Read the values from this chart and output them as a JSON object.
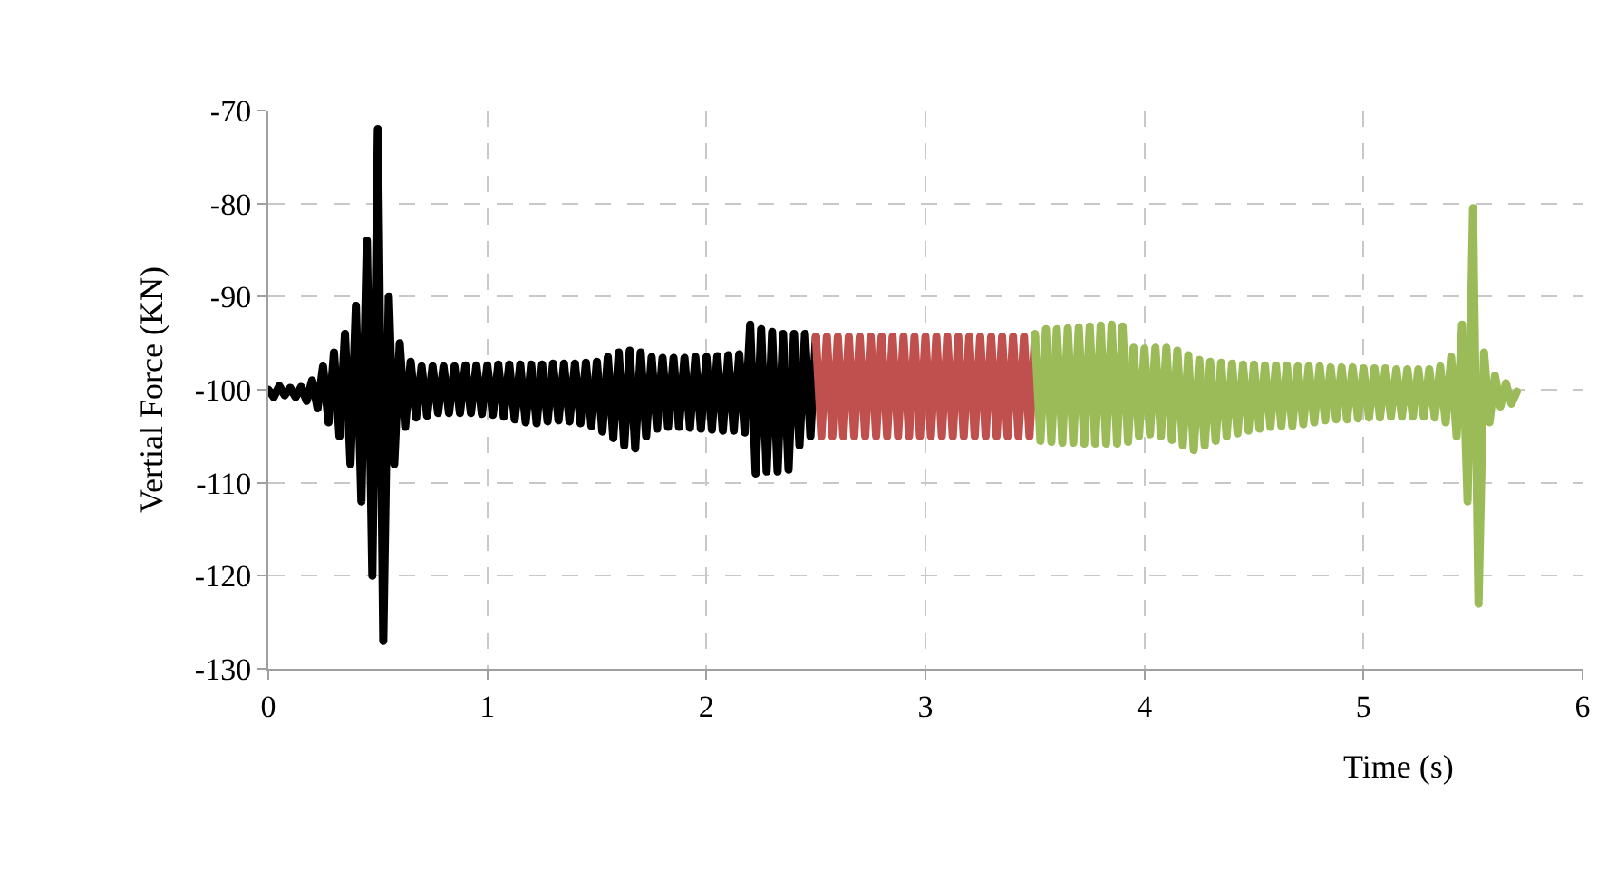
{
  "chart_data": {
    "type": "line",
    "xlabel": "Time (s)",
    "ylabel": "Vertial Force (KN)",
    "xlim": [
      0,
      6
    ],
    "xticks": [
      0,
      1,
      2,
      3,
      4,
      5,
      6
    ],
    "ylim": [
      -130,
      -70
    ],
    "yticks": [
      -130,
      -120,
      -110,
      -100,
      -90,
      -80,
      -70
    ],
    "grid": true,
    "marker": "none",
    "line_style": "solid",
    "series": [
      {
        "color": "#000000",
        "x": [
          0,
          0.025,
          0.05,
          0.075,
          0.1,
          0.125,
          0.15,
          0.175,
          0.2,
          0.225,
          0.25,
          0.275,
          0.3,
          0.325,
          0.35,
          0.375,
          0.4,
          0.425,
          0.45,
          0.475,
          0.5,
          0.525,
          0.55,
          0.575,
          0.6,
          0.625,
          0.65,
          0.675,
          0.7,
          0.725,
          0.75,
          0.775,
          0.8,
          0.825,
          0.85,
          0.875,
          0.9,
          0.925,
          0.95,
          0.975,
          1.0,
          1.025,
          1.05,
          1.075,
          1.1,
          1.125,
          1.15,
          1.175,
          1.2,
          1.225,
          1.25,
          1.275,
          1.3,
          1.325,
          1.35,
          1.375,
          1.4,
          1.425,
          1.45,
          1.475,
          1.5,
          1.525,
          1.55,
          1.575,
          1.6,
          1.625,
          1.65,
          1.675,
          1.7,
          1.725,
          1.75,
          1.775,
          1.8,
          1.825,
          1.85,
          1.875,
          1.9,
          1.925,
          1.95,
          1.975,
          2.0,
          2.025,
          2.05,
          2.075,
          2.1,
          2.125,
          2.15,
          2.175,
          2.2,
          2.225,
          2.25,
          2.275,
          2.3,
          2.325,
          2.35,
          2.375,
          2.4,
          2.425,
          2.45,
          2.475,
          2.5
        ],
        "values": [
          -100,
          -100.8,
          -99.6,
          -100.6,
          -99.8,
          -100.8,
          -99.7,
          -101.2,
          -99.0,
          -102.0,
          -97.5,
          -103.5,
          -96.0,
          -105.0,
          -94.0,
          -108.0,
          -91.0,
          -112.0,
          -84.0,
          -120.0,
          -72.0,
          -127.0,
          -90.0,
          -108.0,
          -95.0,
          -104.0,
          -97.0,
          -103.0,
          -97.5,
          -102.8,
          -97.5,
          -102.5,
          -97.5,
          -102.5,
          -97.5,
          -102.5,
          -97.4,
          -102.5,
          -97.4,
          -102.6,
          -97.4,
          -102.7,
          -97.3,
          -102.9,
          -97.3,
          -103.2,
          -97.3,
          -103.5,
          -97.3,
          -103.6,
          -97.3,
          -103.4,
          -97.2,
          -103.3,
          -97.2,
          -103.4,
          -97.2,
          -103.6,
          -97.1,
          -103.9,
          -97.0,
          -104.5,
          -96.5,
          -105.2,
          -96.0,
          -106.0,
          -95.8,
          -106.3,
          -96.0,
          -105.0,
          -96.5,
          -104.2,
          -96.6,
          -104.0,
          -96.6,
          -104.0,
          -96.6,
          -104.1,
          -96.5,
          -104.2,
          -96.5,
          -104.3,
          -96.4,
          -104.4,
          -96.3,
          -104.4,
          -96.2,
          -104.6,
          -93.0,
          -109.0,
          -93.5,
          -108.8,
          -93.8,
          -108.8,
          -94.0,
          -108.6,
          -94.0,
          -106.0,
          -94.0,
          -105.0,
          -94.3
        ]
      },
      {
        "color": "#c0504d",
        "x": [
          2.5,
          2.525,
          2.55,
          2.575,
          2.6,
          2.625,
          2.65,
          2.675,
          2.7,
          2.725,
          2.75,
          2.775,
          2.8,
          2.825,
          2.85,
          2.875,
          2.9,
          2.925,
          2.95,
          2.975,
          3.0,
          3.025,
          3.05,
          3.075,
          3.1,
          3.125,
          3.15,
          3.175,
          3.2,
          3.225,
          3.25,
          3.275,
          3.3,
          3.325,
          3.35,
          3.375,
          3.4,
          3.425,
          3.45,
          3.475,
          3.5
        ],
        "values": [
          -94.3,
          -105.0,
          -94.3,
          -105.0,
          -94.3,
          -105.0,
          -94.3,
          -105.0,
          -94.3,
          -105.0,
          -94.3,
          -105.0,
          -94.3,
          -105.0,
          -94.3,
          -105.0,
          -94.3,
          -105.0,
          -94.3,
          -105.0,
          -94.3,
          -105.0,
          -94.3,
          -105.0,
          -94.3,
          -105.0,
          -94.3,
          -105.0,
          -94.3,
          -105.0,
          -94.3,
          -105.0,
          -94.3,
          -105.0,
          -94.3,
          -105.0,
          -94.3,
          -105.0,
          -94.3,
          -105.0,
          -94.3
        ]
      },
      {
        "color": "#9bbb59",
        "x": [
          3.5,
          3.525,
          3.55,
          3.575,
          3.6,
          3.625,
          3.65,
          3.675,
          3.7,
          3.725,
          3.75,
          3.775,
          3.8,
          3.825,
          3.85,
          3.875,
          3.9,
          3.925,
          3.95,
          3.975,
          4.0,
          4.025,
          4.05,
          4.075,
          4.1,
          4.125,
          4.15,
          4.175,
          4.2,
          4.225,
          4.25,
          4.275,
          4.3,
          4.325,
          4.35,
          4.375,
          4.4,
          4.425,
          4.45,
          4.475,
          4.5,
          4.525,
          4.55,
          4.575,
          4.6,
          4.625,
          4.65,
          4.675,
          4.7,
          4.725,
          4.75,
          4.775,
          4.8,
          4.825,
          4.85,
          4.875,
          4.9,
          4.925,
          4.95,
          4.975,
          5.0,
          5.025,
          5.05,
          5.075,
          5.1,
          5.125,
          5.15,
          5.175,
          5.2,
          5.225,
          5.25,
          5.275,
          5.3,
          5.325,
          5.35,
          5.375,
          5.4,
          5.425,
          5.45,
          5.475,
          5.5,
          5.525,
          5.55,
          5.575,
          5.6,
          5.625,
          5.65,
          5.675,
          5.7
        ],
        "values": [
          -94.0,
          -105.5,
          -93.5,
          -105.6,
          -93.5,
          -105.7,
          -93.4,
          -105.7,
          -93.3,
          -105.8,
          -93.2,
          -105.8,
          -93.1,
          -105.8,
          -93.0,
          -105.8,
          -93.2,
          -105.6,
          -95.5,
          -105.0,
          -95.6,
          -104.8,
          -95.5,
          -105.0,
          -95.5,
          -105.4,
          -95.8,
          -106.0,
          -96.3,
          -106.5,
          -96.8,
          -106.0,
          -97.0,
          -105.5,
          -97.1,
          -105.0,
          -97.2,
          -104.7,
          -97.3,
          -104.4,
          -97.3,
          -104.2,
          -97.4,
          -104.0,
          -97.4,
          -103.9,
          -97.4,
          -103.9,
          -97.5,
          -103.7,
          -97.5,
          -103.5,
          -97.5,
          -103.3,
          -97.6,
          -103.2,
          -97.6,
          -103.2,
          -97.6,
          -103.1,
          -97.7,
          -103.0,
          -97.7,
          -103.0,
          -97.7,
          -102.9,
          -97.8,
          -102.9,
          -97.8,
          -102.9,
          -97.8,
          -102.9,
          -97.8,
          -103.0,
          -97.5,
          -103.5,
          -96.5,
          -105.0,
          -93.0,
          -112.0,
          -80.5,
          -123.0,
          -96.0,
          -103.5,
          -98.5,
          -101.8,
          -99.3,
          -101.5,
          -100.2
        ]
      }
    ]
  }
}
